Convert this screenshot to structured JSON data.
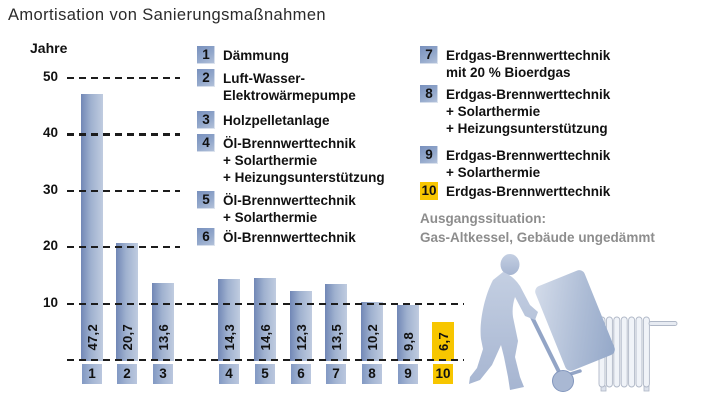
{
  "title": "Amortisation von Sanierungsmaßnahmen",
  "axis": {
    "unit_label": "Jahre"
  },
  "chart_data": {
    "type": "bar",
    "title": "Amortisation von Sanierungsmaßnahmen",
    "ylabel": "Jahre",
    "ylim": [
      0,
      50
    ],
    "yticks": [
      50,
      40,
      30,
      20,
      10
    ],
    "grid": "dashed horizontal gridlines incl. baseline",
    "categories": [
      "1",
      "2",
      "3",
      "4",
      "5",
      "6",
      "7",
      "8",
      "9",
      "10"
    ],
    "values": [
      47.2,
      20.7,
      13.6,
      14.3,
      14.6,
      12.3,
      13.5,
      10.2,
      9.8,
      6.7
    ],
    "value_labels": [
      "47,2",
      "20,7",
      "13,6",
      "14,3",
      "14,6",
      "12,3",
      "13,5",
      "10,2",
      "9,8",
      "6,7"
    ],
    "highlight_index": 9,
    "colors": {
      "bar_start": "#7187b6",
      "bar_end": "#c0cce0",
      "highlight": "#f7c600"
    }
  },
  "legend": {
    "columns": [
      {
        "items": [
          {
            "num": "1",
            "label": "Dämmung"
          },
          {
            "num": "2",
            "label": "Luft-Wasser-\nElektrowärmepumpe"
          },
          {
            "num": "3",
            "label": "Holzpelletanlage"
          },
          {
            "num": "4",
            "label": "Öl-Brennwerttechnik\n+ Solarthermie\n+ Heizungsunterstützung"
          },
          {
            "num": "5",
            "label": "Öl-Brennwerttechnik\n+ Solarthermie"
          },
          {
            "num": "6",
            "label": "Öl-Brennwerttechnik"
          }
        ]
      },
      {
        "items": [
          {
            "num": "7",
            "label": "Erdgas-Brennwerttechnik\nmit 20 % Bioerdgas"
          },
          {
            "num": "8",
            "label": "Erdgas-Brennwerttechnik\n+ Solarthermie\n+ Heizungsunterstützung"
          },
          {
            "num": "9",
            "label": "Erdgas-Brennwerttechnik\n+ Solarthermie"
          },
          {
            "num": "10",
            "label": "Erdgas-Brennwerttechnik",
            "highlight": true
          }
        ]
      }
    ]
  },
  "footnote": {
    "line1": "Ausgangssituation:",
    "line2": "Gas-Altkessel, Gebäude ungedämmt"
  },
  "illustration": {
    "icons": [
      "worker-silhouette-icon",
      "hand-truck-icon",
      "boiler-icon",
      "radiator-icon"
    ]
  }
}
